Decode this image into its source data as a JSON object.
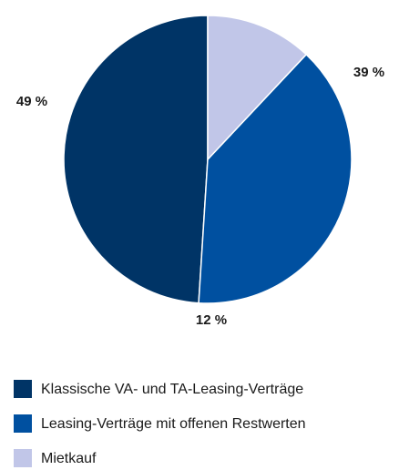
{
  "chart_data": {
    "type": "pie",
    "categories": [
      "Klassische VA- und TA-Leasing-Verträge",
      "Leasing-Verträge mit offenen Restwerten",
      "Mietkauf"
    ],
    "values": [
      49,
      39,
      12
    ],
    "value_labels": [
      "49 %",
      "39 %",
      "12 %"
    ],
    "colors": [
      "#003466",
      "#0050a0",
      "#c1c6e8"
    ]
  }
}
